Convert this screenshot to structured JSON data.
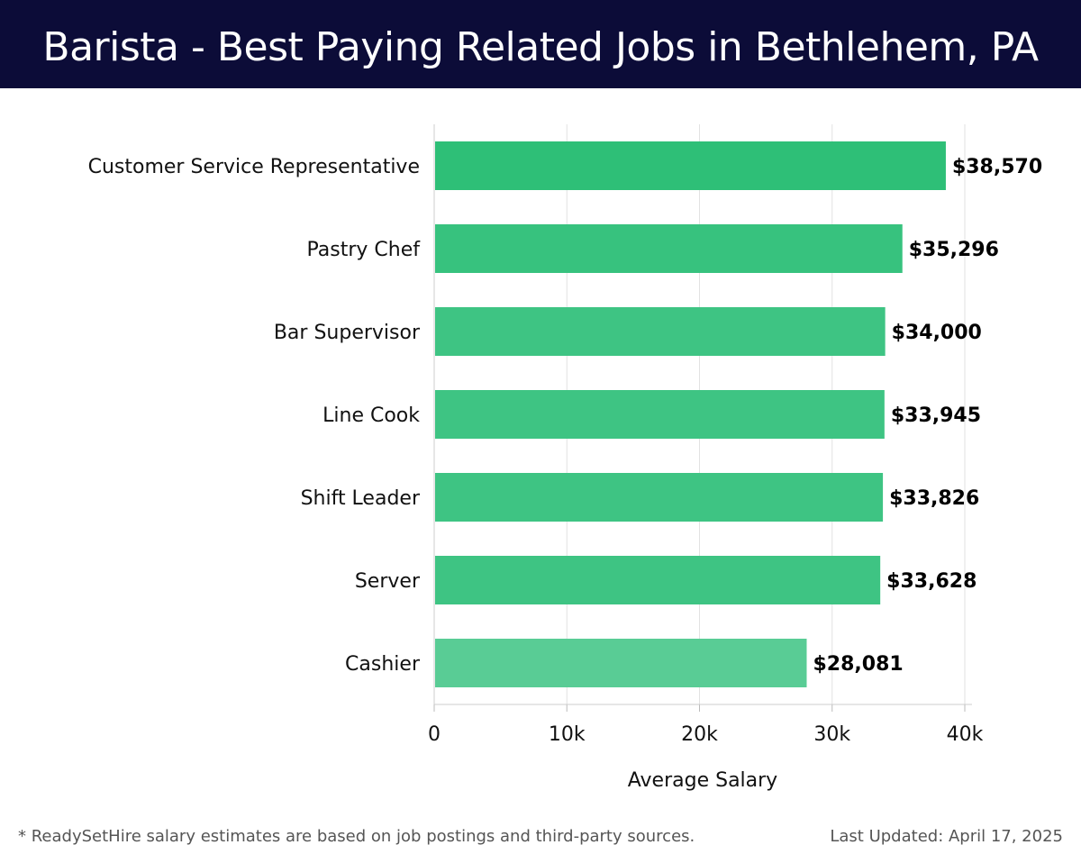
{
  "header": {
    "title": "Barista - Best Paying Related Jobs in Bethlehem, PA"
  },
  "chart_data": {
    "type": "bar",
    "orientation": "horizontal",
    "categories": [
      "Customer Service Representative",
      "Pastry Chef",
      "Bar Supervisor",
      "Line Cook",
      "Shift Leader",
      "Server",
      "Cashier"
    ],
    "values": [
      38570,
      35296,
      34000,
      33945,
      33826,
      33628,
      28081
    ],
    "value_labels": [
      "$38,570",
      "$35,296",
      "$34,000",
      "$33,945",
      "$33,826",
      "$33,628",
      "$28,081"
    ],
    "bar_colors": [
      "#2ebf77",
      "#37c27e",
      "#3ec483",
      "#3ec483",
      "#3ec483",
      "#3ec483",
      "#59cc95"
    ],
    "xlabel": "Average Salary",
    "ylabel": "",
    "xlim": [
      0,
      40000
    ],
    "x_ticks": [
      0,
      10000,
      20000,
      30000,
      40000
    ],
    "x_tick_labels": [
      "0",
      "10k",
      "20k",
      "30k",
      "40k"
    ],
    "grid": "vertical"
  },
  "footer": {
    "note": "* ReadySetHire salary estimates are based on job postings and third-party sources.",
    "updated": "Last Updated: April 17, 2025"
  }
}
